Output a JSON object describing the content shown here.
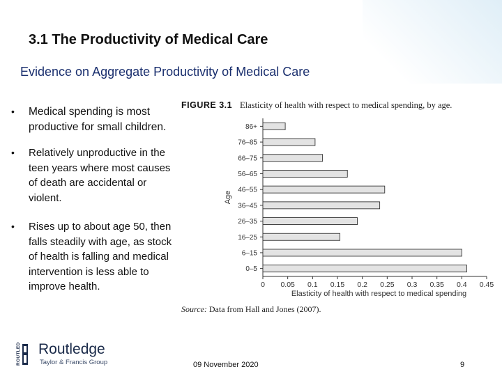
{
  "slide": {
    "title": "3.1 The Productivity of Medical Care",
    "subtitle": "Evidence on Aggregate Productivity of Medical Care",
    "bullets": [
      "Medical spending is most productive for small children.",
      "Relatively unproductive in the teen years where most causes of death are accidental or violent.",
      "Rises up to about age 50, then falls steadily with age, as stock of health is falling and medical intervention is less able to improve health."
    ],
    "bullet_symbol": "•",
    "footer_date": "09 November 2020",
    "page_number": "9"
  },
  "figure": {
    "label": "FIGURE 3.1",
    "caption": "Elasticity of health with respect to medical spending, by age.",
    "source_prefix": "Source:",
    "source_text": " Data from Hall and Jones (2007)."
  },
  "logo": {
    "side_text": "ROUTLEDGE",
    "name": "Routledge",
    "subtitle": "Taylor & Francis Group"
  },
  "colors": {
    "bar_fill": "#e3e3e3",
    "bar_stroke": "#333333",
    "subtitle": "#1a2f6e",
    "logo": "#1b2b4a"
  },
  "chart_data": {
    "type": "bar",
    "orientation": "horizontal",
    "categories": [
      "86+",
      "76–85",
      "66–75",
      "56–65",
      "46–55",
      "36–45",
      "26–35",
      "16–25",
      "6–15",
      "0–5"
    ],
    "values": [
      0.045,
      0.105,
      0.12,
      0.17,
      0.245,
      0.235,
      0.19,
      0.155,
      0.4,
      0.41
    ],
    "xlabel": "Elasticity of health with respect to medical spending",
    "ylabel": "Age",
    "xlim": [
      0,
      0.45
    ],
    "xticks": [
      0,
      0.05,
      0.1,
      0.15,
      0.2,
      0.25,
      0.3,
      0.35,
      0.4,
      0.45
    ],
    "xtick_labels": [
      "0",
      "0.05",
      "0.1",
      "0.15",
      "0.2",
      "0.25",
      "0.3",
      "0.35",
      "0.4",
      "0.45"
    ],
    "grid": false
  }
}
